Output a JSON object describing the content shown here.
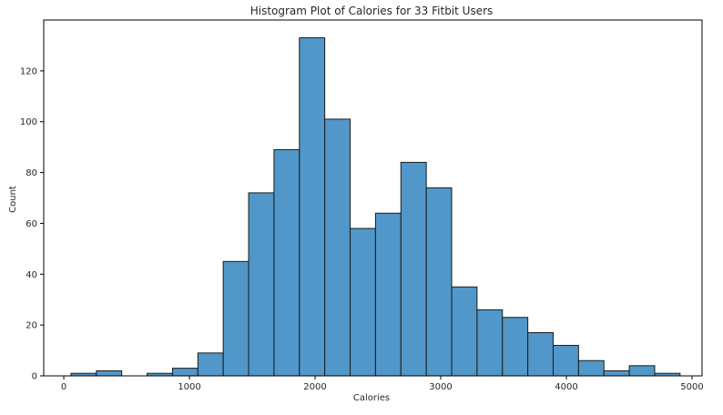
{
  "chart_data": {
    "type": "bar",
    "title": "Histogram Plot of Calories for 33 Fitbit Users",
    "xlabel": "Calories",
    "ylabel": "Count",
    "xlim": [
      -160,
      5080
    ],
    "ylim": [
      0,
      140
    ],
    "xticks": [
      "0",
      "1000",
      "2000",
      "3000",
      "4000",
      "5000"
    ],
    "yticks": [
      "0",
      "20",
      "40",
      "60",
      "80",
      "100",
      "120"
    ],
    "grid": false,
    "bar_color": "#5197c9",
    "edge_color": "#1a1a1a",
    "bins": [
      {
        "x0": 57,
        "x1": 259,
        "value": 1
      },
      {
        "x0": 259,
        "x1": 461,
        "value": 2
      },
      {
        "x0": 461,
        "x1": 663,
        "value": 0
      },
      {
        "x0": 663,
        "x1": 865,
        "value": 1
      },
      {
        "x0": 865,
        "x1": 1067,
        "value": 3
      },
      {
        "x0": 1067,
        "x1": 1269,
        "value": 9
      },
      {
        "x0": 1269,
        "x1": 1471,
        "value": 45
      },
      {
        "x0": 1471,
        "x1": 1673,
        "value": 72
      },
      {
        "x0": 1673,
        "x1": 1875,
        "value": 89
      },
      {
        "x0": 1875,
        "x1": 2077,
        "value": 133
      },
      {
        "x0": 2077,
        "x1": 2279,
        "value": 101
      },
      {
        "x0": 2279,
        "x1": 2481,
        "value": 58
      },
      {
        "x0": 2481,
        "x1": 2683,
        "value": 64
      },
      {
        "x0": 2683,
        "x1": 2885,
        "value": 84
      },
      {
        "x0": 2885,
        "x1": 3087,
        "value": 74
      },
      {
        "x0": 3087,
        "x1": 3289,
        "value": 35
      },
      {
        "x0": 3289,
        "x1": 3491,
        "value": 26
      },
      {
        "x0": 3491,
        "x1": 3693,
        "value": 23
      },
      {
        "x0": 3693,
        "x1": 3895,
        "value": 17
      },
      {
        "x0": 3895,
        "x1": 4097,
        "value": 12
      },
      {
        "x0": 4097,
        "x1": 4299,
        "value": 6
      },
      {
        "x0": 4299,
        "x1": 4501,
        "value": 2
      },
      {
        "x0": 4501,
        "x1": 4703,
        "value": 4
      },
      {
        "x0": 4703,
        "x1": 4905,
        "value": 1
      }
    ]
  }
}
